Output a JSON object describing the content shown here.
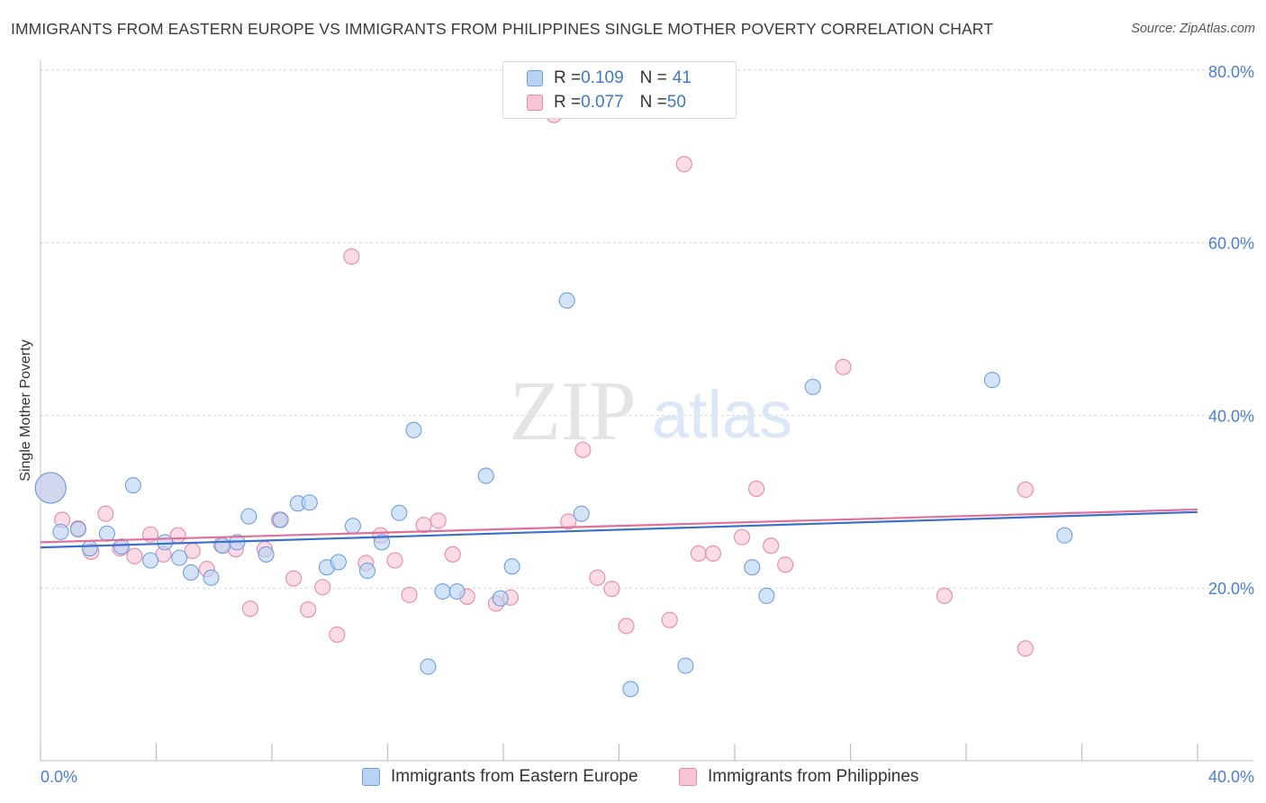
{
  "title": "IMMIGRANTS FROM EASTERN EUROPE VS IMMIGRANTS FROM PHILIPPINES SINGLE MOTHER POVERTY CORRELATION CHART",
  "source": "Source: ZipAtlas.com",
  "watermark": {
    "zip": "ZIP",
    "atlas": "atlas"
  },
  "legend": {
    "series1": {
      "r_label": "R = ",
      "r_value": "0.109",
      "n_label": "N = ",
      "n_value": "41"
    },
    "series2": {
      "r_label": "R = ",
      "r_value": "0.077",
      "n_label": "N = ",
      "n_value": "50"
    }
  },
  "colors": {
    "blue_fill": "#b8d2f3",
    "blue_stroke": "#6d9fe0",
    "blue_line": "#3a6fcc",
    "pink_fill": "#f8c3d4",
    "pink_stroke": "#e68aa8",
    "pink_line": "#e0709a",
    "grid": "#d8d8d8",
    "tick_text": "#4a7fd0"
  },
  "chart_data": {
    "type": "scatter",
    "title": "IMMIGRANTS FROM EASTERN EUROPE VS IMMIGRANTS FROM PHILIPPINES SINGLE MOTHER POVERTY CORRELATION CHART",
    "xlabel": "",
    "ylabel": "Single Mother Poverty",
    "xlim": [
      0,
      40
    ],
    "ylim": [
      0,
      81
    ],
    "x_tick_labels": [
      "0.0%",
      "40.0%"
    ],
    "y_ticks": [
      20,
      40,
      60,
      80
    ],
    "y_tick_labels": [
      "20.0%",
      "40.0%",
      "60.0%",
      "80.0%"
    ],
    "legend_placement": "top-center",
    "series": [
      {
        "name": "Immigrants from Eastern Europe",
        "color": "#6d9fe0",
        "R": 0.109,
        "N": 41,
        "trend": {
          "x": [
            0,
            40
          ],
          "y": [
            24.7,
            28.8
          ]
        },
        "points": [
          {
            "x": 0.35,
            "y": 31.6,
            "big": true
          },
          {
            "x": 0.7,
            "y": 26.5
          },
          {
            "x": 1.3,
            "y": 26.8
          },
          {
            "x": 1.7,
            "y": 24.6
          },
          {
            "x": 2.3,
            "y": 26.3
          },
          {
            "x": 2.8,
            "y": 24.8
          },
          {
            "x": 3.2,
            "y": 31.9
          },
          {
            "x": 3.8,
            "y": 23.2
          },
          {
            "x": 4.3,
            "y": 25.3
          },
          {
            "x": 4.8,
            "y": 23.5
          },
          {
            "x": 5.2,
            "y": 21.8
          },
          {
            "x": 5.9,
            "y": 21.2
          },
          {
            "x": 6.3,
            "y": 24.9
          },
          {
            "x": 6.8,
            "y": 25.3
          },
          {
            "x": 7.2,
            "y": 28.3
          },
          {
            "x": 7.8,
            "y": 23.9
          },
          {
            "x": 8.3,
            "y": 27.9
          },
          {
            "x": 8.9,
            "y": 29.8
          },
          {
            "x": 9.3,
            "y": 29.9
          },
          {
            "x": 9.9,
            "y": 22.4
          },
          {
            "x": 10.3,
            "y": 23.0
          },
          {
            "x": 10.8,
            "y": 27.2
          },
          {
            "x": 11.3,
            "y": 22.0
          },
          {
            "x": 11.8,
            "y": 25.3
          },
          {
            "x": 12.4,
            "y": 28.7
          },
          {
            "x": 12.9,
            "y": 38.3
          },
          {
            "x": 13.4,
            "y": 10.9
          },
          {
            "x": 13.9,
            "y": 19.6
          },
          {
            "x": 14.4,
            "y": 19.6
          },
          {
            "x": 15.4,
            "y": 33.0
          },
          {
            "x": 15.9,
            "y": 18.8
          },
          {
            "x": 16.3,
            "y": 22.5
          },
          {
            "x": 18.2,
            "y": 53.3
          },
          {
            "x": 18.7,
            "y": 28.6
          },
          {
            "x": 20.4,
            "y": 8.3
          },
          {
            "x": 22.3,
            "y": 11.0
          },
          {
            "x": 24.6,
            "y": 22.4
          },
          {
            "x": 25.1,
            "y": 19.1
          },
          {
            "x": 26.7,
            "y": 43.3
          },
          {
            "x": 32.9,
            "y": 44.1
          },
          {
            "x": 35.4,
            "y": 26.1
          }
        ]
      },
      {
        "name": "Immigrants from Philippines",
        "color": "#e68aa8",
        "R": 0.077,
        "N": 50,
        "trend": {
          "x": [
            0,
            40
          ],
          "y": [
            25.3,
            29.1
          ]
        },
        "points": [
          {
            "x": 0.35,
            "y": 31.6,
            "big": true
          },
          {
            "x": 0.75,
            "y": 27.9
          },
          {
            "x": 1.3,
            "y": 26.9
          },
          {
            "x": 1.75,
            "y": 24.2
          },
          {
            "x": 2.25,
            "y": 28.6
          },
          {
            "x": 2.75,
            "y": 24.6
          },
          {
            "x": 3.25,
            "y": 23.7
          },
          {
            "x": 3.8,
            "y": 26.2
          },
          {
            "x": 4.25,
            "y": 23.9
          },
          {
            "x": 4.75,
            "y": 26.1
          },
          {
            "x": 5.25,
            "y": 24.3
          },
          {
            "x": 5.75,
            "y": 22.2
          },
          {
            "x": 6.25,
            "y": 25.0
          },
          {
            "x": 6.75,
            "y": 24.5
          },
          {
            "x": 7.25,
            "y": 17.6
          },
          {
            "x": 7.75,
            "y": 24.5
          },
          {
            "x": 8.25,
            "y": 27.9
          },
          {
            "x": 8.75,
            "y": 21.1
          },
          {
            "x": 9.25,
            "y": 17.5
          },
          {
            "x": 9.75,
            "y": 20.1
          },
          {
            "x": 10.25,
            "y": 14.6
          },
          {
            "x": 10.75,
            "y": 58.4
          },
          {
            "x": 11.25,
            "y": 22.9
          },
          {
            "x": 11.75,
            "y": 26.1
          },
          {
            "x": 12.25,
            "y": 23.2
          },
          {
            "x": 12.75,
            "y": 19.2
          },
          {
            "x": 13.25,
            "y": 27.3
          },
          {
            "x": 13.75,
            "y": 27.8
          },
          {
            "x": 14.25,
            "y": 23.9
          },
          {
            "x": 14.75,
            "y": 19.0
          },
          {
            "x": 15.75,
            "y": 18.2
          },
          {
            "x": 16.25,
            "y": 18.9
          },
          {
            "x": 17.75,
            "y": 74.8
          },
          {
            "x": 18.25,
            "y": 27.7
          },
          {
            "x": 18.75,
            "y": 36.0
          },
          {
            "x": 19.25,
            "y": 21.2
          },
          {
            "x": 19.75,
            "y": 19.9
          },
          {
            "x": 20.25,
            "y": 15.6
          },
          {
            "x": 21.75,
            "y": 16.3
          },
          {
            "x": 22.25,
            "y": 69.1
          },
          {
            "x": 22.75,
            "y": 24.0
          },
          {
            "x": 23.25,
            "y": 24.0
          },
          {
            "x": 24.25,
            "y": 25.9
          },
          {
            "x": 24.75,
            "y": 31.5
          },
          {
            "x": 25.25,
            "y": 24.9
          },
          {
            "x": 25.75,
            "y": 22.7
          },
          {
            "x": 27.75,
            "y": 45.6
          },
          {
            "x": 31.25,
            "y": 19.1
          },
          {
            "x": 34.05,
            "y": 31.4
          },
          {
            "x": 34.05,
            "y": 13.0
          }
        ]
      }
    ]
  },
  "bottom_legend": {
    "item1": "Immigrants from Eastern Europe",
    "item2": "Immigrants from Philippines"
  }
}
